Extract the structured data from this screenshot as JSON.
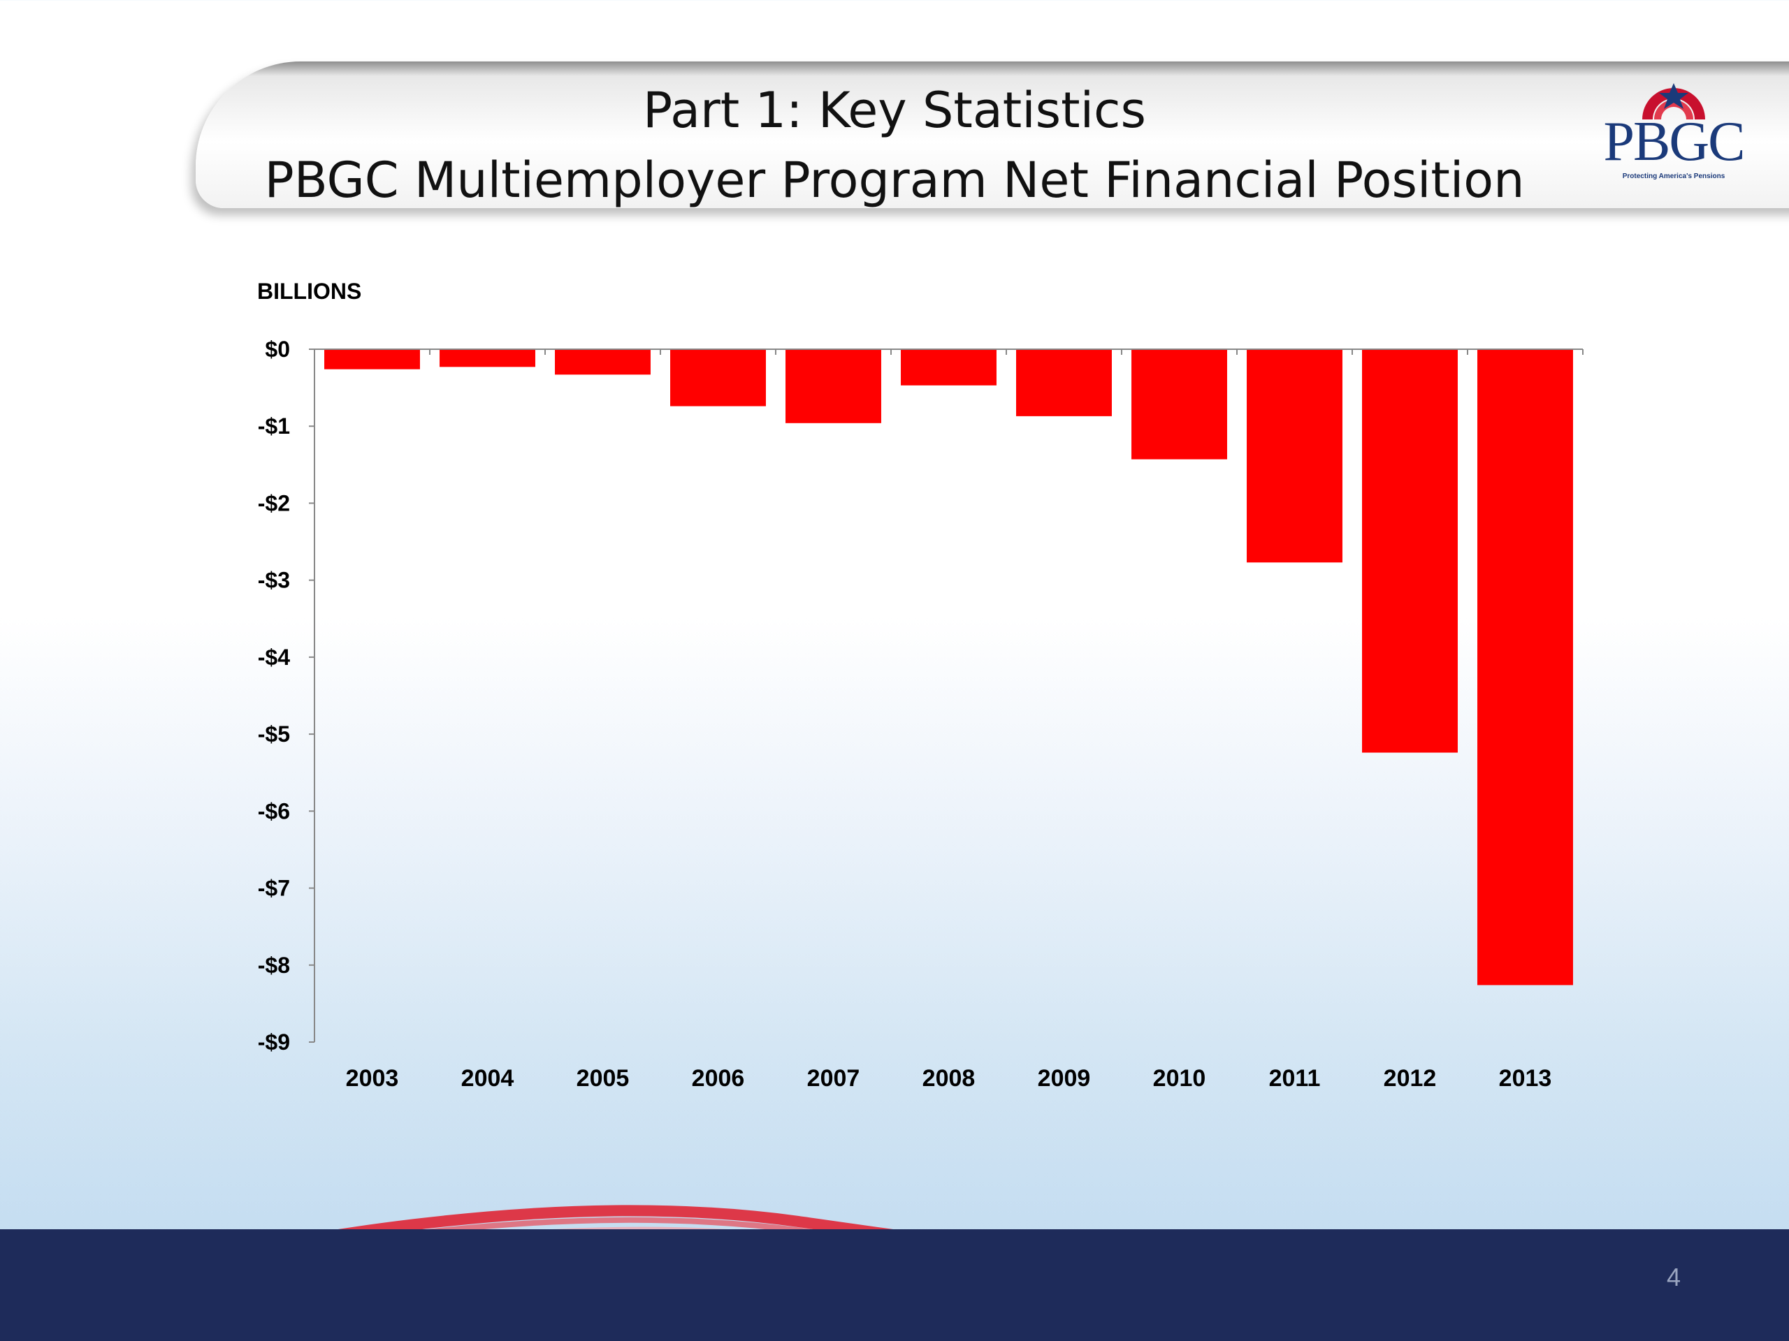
{
  "header": {
    "title_line1": "Part 1: Key Statistics",
    "title_line2": "PBGC Multiemployer Program Net Financial Position"
  },
  "logo": {
    "text": "PBGC",
    "tagline": "Protecting America's Pensions"
  },
  "footer": {
    "page_number": "4"
  },
  "colors": {
    "bar": "#ff0000",
    "footer_navy": "#1e2b5a",
    "logo_blue": "#1b3a7a",
    "logo_red": "#c8102e"
  },
  "chart_data": {
    "type": "bar",
    "units_label": "BILLIONS",
    "categories": [
      "2003",
      "2004",
      "2005",
      "2006",
      "2007",
      "2008",
      "2009",
      "2010",
      "2011",
      "2012",
      "2013"
    ],
    "values": [
      -0.26,
      -0.23,
      -0.33,
      -0.74,
      -0.96,
      -0.47,
      -0.87,
      -1.43,
      -2.77,
      -5.24,
      -8.26
    ],
    "y_ticks": [
      "$0",
      "-$1",
      "-$2",
      "-$3",
      "-$4",
      "-$5",
      "-$6",
      "-$7",
      "-$8",
      "-$9"
    ],
    "ylim": [
      -9,
      0
    ],
    "grid": false,
    "legend": "none"
  }
}
